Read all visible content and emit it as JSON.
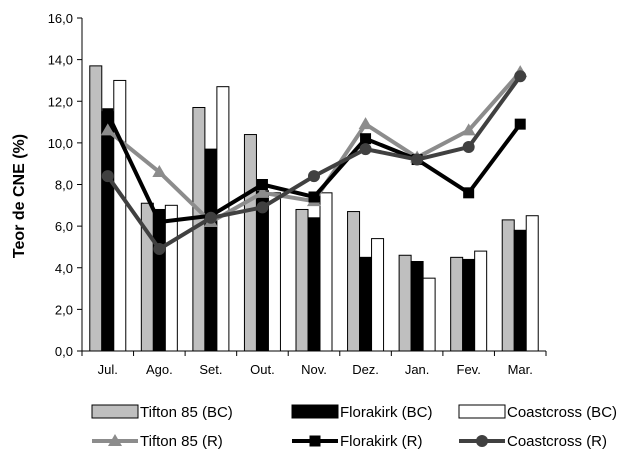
{
  "chart_data": {
    "type": "bar",
    "categories": [
      "Jul.",
      "Ago.",
      "Set.",
      "Out.",
      "Nov.",
      "Dez.",
      "Jan.",
      "Fev.",
      "Mar."
    ],
    "ylabel": "Teor de CNE (%)",
    "xlabel": "",
    "ylim": [
      0,
      16
    ],
    "yticks": [
      "0,0",
      "2,0",
      "4,0",
      "6,0",
      "8,0",
      "10,0",
      "12,0",
      "14,0",
      "16,0"
    ],
    "grid": false,
    "legend_position": "bottom",
    "bar_series": [
      {
        "name": "Tifton 85 (BC)",
        "color": "#bfbfbf",
        "values": [
          13.7,
          7.1,
          11.7,
          10.4,
          6.8,
          6.7,
          4.6,
          4.5,
          6.3
        ]
      },
      {
        "name": "Florakirk (BC)",
        "color": "#000000",
        "values": [
          11.5,
          6.8,
          9.7,
          7.7,
          6.4,
          4.5,
          4.3,
          4.4,
          5.8
        ]
      },
      {
        "name": "Coastcross (BC)",
        "color": "#ffffff",
        "values": [
          13.0,
          7.0,
          12.7,
          7.6,
          7.6,
          5.4,
          3.5,
          4.8,
          6.5
        ]
      }
    ],
    "line_series": [
      {
        "name": "Tifton 85 (R)",
        "color": "#8c8c8c",
        "marker": "triangle",
        "values": [
          10.6,
          8.6,
          6.2,
          7.6,
          7.2,
          10.9,
          9.3,
          10.6,
          13.4
        ]
      },
      {
        "name": "Florakirk (R)",
        "color": "#000000",
        "marker": "square",
        "values": [
          11.4,
          6.2,
          6.5,
          8.0,
          7.4,
          10.2,
          9.2,
          7.6,
          10.9
        ]
      },
      {
        "name": "Coastcross (R)",
        "color": "#404040",
        "marker": "circle",
        "values": [
          8.4,
          4.9,
          6.4,
          6.9,
          8.4,
          9.7,
          9.2,
          9.8,
          13.2
        ]
      }
    ]
  }
}
